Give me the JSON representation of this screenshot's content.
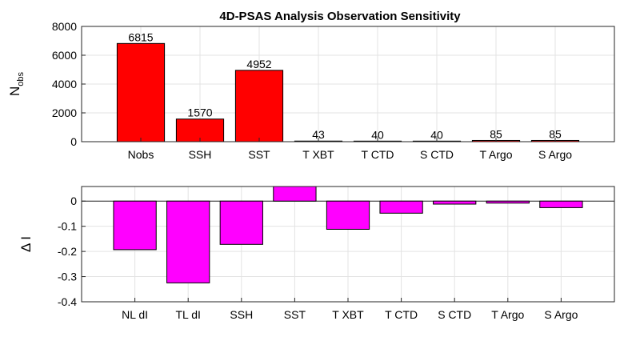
{
  "chart_data": [
    {
      "type": "bar",
      "title": "4D-PSAS Analysis Observation Sensitivity",
      "ylabel_main": "N",
      "ylabel_sub": "obs",
      "xlabel": "",
      "categories": [
        "Nobs",
        "SSH",
        "SST",
        "T XBT",
        "T CTD",
        "S CTD",
        "T Argo",
        "S Argo"
      ],
      "values": [
        6815,
        1570,
        4952,
        43,
        40,
        40,
        85,
        85
      ],
      "data_labels": [
        "6815",
        "1570",
        "4952",
        "43",
        "40",
        "40",
        "85",
        "85"
      ],
      "ylim": [
        0,
        8000
      ],
      "yticks": [
        0,
        2000,
        4000,
        6000,
        8000
      ],
      "bar_color": "#ff0000",
      "grid": true
    },
    {
      "type": "bar",
      "title": "",
      "ylabel": "Δ I",
      "xlabel": "",
      "categories": [
        "NL dI",
        "TL dI",
        "SSH",
        "SST",
        "T XBT",
        "T CTD",
        "S CTD",
        "T Argo",
        "S Argo"
      ],
      "values": [
        -0.193,
        -0.325,
        -0.172,
        0.058,
        -0.112,
        -0.048,
        -0.012,
        -0.008,
        -0.026
      ],
      "ylim": [
        -0.4,
        0.058
      ],
      "yticks": [
        -0.4,
        -0.3,
        -0.2,
        -0.1,
        0
      ],
      "ytick_labels": [
        "-0.4",
        "-0.3",
        "-0.2",
        "-0.1",
        "0"
      ],
      "bar_color": "#ff00ff",
      "grid": true
    }
  ]
}
